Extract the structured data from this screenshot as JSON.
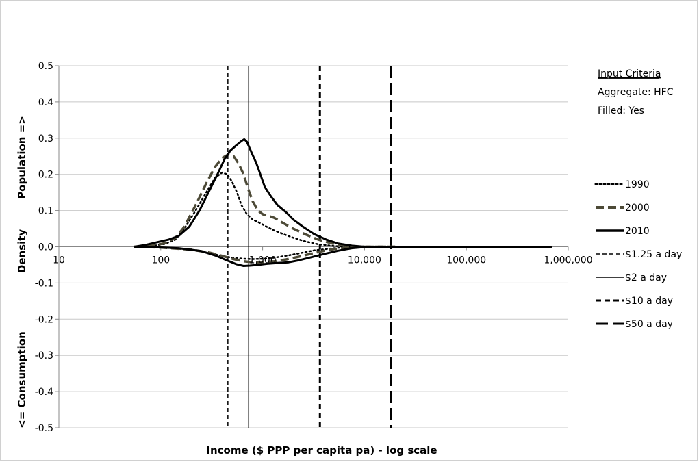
{
  "chart_data": {
    "type": "line",
    "xscale": "log",
    "xlim": [
      10,
      1000000
    ],
    "ylim": [
      -0.5,
      0.5
    ],
    "ytick_labels": [
      "0.5",
      "0.4",
      "0.3",
      "0.2",
      "0.1",
      "0.0",
      "-0.1",
      "-0.2",
      "-0.3",
      "-0.4",
      "-0.5"
    ],
    "yticks": [
      0.5,
      0.4,
      0.3,
      0.2,
      0.1,
      0.0,
      -0.1,
      -0.2,
      -0.3,
      -0.4,
      -0.5
    ],
    "xticks": [
      10,
      100,
      1000,
      10000,
      100000,
      1000000
    ],
    "xtick_labels": [
      "10",
      "100",
      "1,000",
      "10,000",
      "100,000",
      "1,000,000"
    ],
    "xlabel": "Income ($ PPP per capita pa) - log scale",
    "ylabel_top": "Population =>",
    "ylabel_mid": "Density",
    "ylabel_bottom": "<= Consumption",
    "grid": "horizontal",
    "legend_position": "right",
    "input_criteria": {
      "heading": "Input Criteria",
      "aggregate": "Aggregate: HFC",
      "filled": "Filled: Yes"
    },
    "series": [
      {
        "name": "1990",
        "style": "dotted",
        "color": "#000000",
        "population": [
          [
            55,
            0
          ],
          [
            70,
            0.002
          ],
          [
            90,
            0.004
          ],
          [
            110,
            0.008
          ],
          [
            140,
            0.02
          ],
          [
            170,
            0.05
          ],
          [
            220,
            0.1
          ],
          [
            280,
            0.15
          ],
          [
            340,
            0.19
          ],
          [
            400,
            0.205
          ],
          [
            450,
            0.2
          ],
          [
            500,
            0.18
          ],
          [
            560,
            0.15
          ],
          [
            620,
            0.115
          ],
          [
            700,
            0.09
          ],
          [
            800,
            0.075
          ],
          [
            950,
            0.065
          ],
          [
            1100,
            0.055
          ],
          [
            1300,
            0.045
          ],
          [
            1600,
            0.035
          ],
          [
            2000,
            0.025
          ],
          [
            2600,
            0.015
          ],
          [
            3500,
            0.007
          ],
          [
            5000,
            0.002
          ],
          [
            7000,
            0
          ],
          [
            20000,
            0
          ]
        ],
        "consumption": [
          [
            55,
            0
          ],
          [
            100,
            -0.002
          ],
          [
            200,
            -0.008
          ],
          [
            300,
            -0.018
          ],
          [
            400,
            -0.025
          ],
          [
            500,
            -0.03
          ],
          [
            650,
            -0.033
          ],
          [
            800,
            -0.034
          ],
          [
            1000,
            -0.033
          ],
          [
            1300,
            -0.03
          ],
          [
            1700,
            -0.025
          ],
          [
            2300,
            -0.018
          ],
          [
            3200,
            -0.01
          ],
          [
            5000,
            -0.004
          ],
          [
            8000,
            0
          ],
          [
            20000,
            0
          ]
        ]
      },
      {
        "name": "2000",
        "style": "dashed",
        "color": "#4d4a37",
        "population": [
          [
            55,
            0
          ],
          [
            70,
            0.002
          ],
          [
            90,
            0.005
          ],
          [
            110,
            0.01
          ],
          [
            140,
            0.025
          ],
          [
            170,
            0.055
          ],
          [
            220,
            0.115
          ],
          [
            280,
            0.175
          ],
          [
            340,
            0.22
          ],
          [
            400,
            0.245
          ],
          [
            460,
            0.255
          ],
          [
            520,
            0.25
          ],
          [
            580,
            0.23
          ],
          [
            650,
            0.2
          ],
          [
            720,
            0.16
          ],
          [
            800,
            0.125
          ],
          [
            900,
            0.1
          ],
          [
            1000,
            0.09
          ],
          [
            1150,
            0.085
          ],
          [
            1300,
            0.08
          ],
          [
            1600,
            0.065
          ],
          [
            2000,
            0.05
          ],
          [
            2600,
            0.035
          ],
          [
            3500,
            0.02
          ],
          [
            5000,
            0.008
          ],
          [
            7000,
            0.002
          ],
          [
            10000,
            0
          ],
          [
            20000,
            0
          ]
        ],
        "consumption": [
          [
            55,
            0
          ],
          [
            100,
            -0.002
          ],
          [
            200,
            -0.008
          ],
          [
            300,
            -0.016
          ],
          [
            400,
            -0.025
          ],
          [
            500,
            -0.033
          ],
          [
            650,
            -0.04
          ],
          [
            800,
            -0.043
          ],
          [
            1000,
            -0.043
          ],
          [
            1300,
            -0.04
          ],
          [
            1700,
            -0.035
          ],
          [
            2300,
            -0.027
          ],
          [
            3200,
            -0.017
          ],
          [
            4500,
            -0.008
          ],
          [
            7000,
            -0.002
          ],
          [
            10000,
            0
          ],
          [
            20000,
            0
          ]
        ]
      },
      {
        "name": "2010",
        "style": "solid",
        "color": "#000000",
        "population": [
          [
            55,
            0
          ],
          [
            70,
            0.005
          ],
          [
            90,
            0.012
          ],
          [
            120,
            0.02
          ],
          [
            150,
            0.03
          ],
          [
            190,
            0.055
          ],
          [
            240,
            0.1
          ],
          [
            300,
            0.155
          ],
          [
            360,
            0.2
          ],
          [
            420,
            0.24
          ],
          [
            480,
            0.265
          ],
          [
            550,
            0.28
          ],
          [
            620,
            0.292
          ],
          [
            660,
            0.297
          ],
          [
            700,
            0.29
          ],
          [
            780,
            0.26
          ],
          [
            870,
            0.23
          ],
          [
            950,
            0.2
          ],
          [
            1050,
            0.165
          ],
          [
            1200,
            0.14
          ],
          [
            1400,
            0.115
          ],
          [
            1700,
            0.095
          ],
          [
            2000,
            0.075
          ],
          [
            2500,
            0.055
          ],
          [
            3200,
            0.035
          ],
          [
            4200,
            0.02
          ],
          [
            5500,
            0.009
          ],
          [
            7500,
            0.003
          ],
          [
            10000,
            0
          ],
          [
            20000,
            0
          ],
          [
            700000,
            0
          ]
        ],
        "consumption": [
          [
            55,
            0
          ],
          [
            80,
            -0.001
          ],
          [
            150,
            -0.004
          ],
          [
            250,
            -0.012
          ],
          [
            350,
            -0.025
          ],
          [
            450,
            -0.038
          ],
          [
            550,
            -0.048
          ],
          [
            650,
            -0.053
          ],
          [
            750,
            -0.052
          ],
          [
            900,
            -0.05
          ],
          [
            1100,
            -0.047
          ],
          [
            1400,
            -0.045
          ],
          [
            1800,
            -0.043
          ],
          [
            2300,
            -0.037
          ],
          [
            3000,
            -0.029
          ],
          [
            4000,
            -0.02
          ],
          [
            5500,
            -0.011
          ],
          [
            7500,
            -0.004
          ],
          [
            10000,
            -0.001
          ],
          [
            20000,
            0
          ]
        ]
      }
    ],
    "reference_lines": [
      {
        "name": "$1.25 a day",
        "x": 456,
        "style": "short-dash",
        "width": 1.5
      },
      {
        "name": "$2 a day",
        "x": 730,
        "style": "solid",
        "width": 1.5
      },
      {
        "name": "$10 a day",
        "x": 3650,
        "style": "dash",
        "width": 3
      },
      {
        "name": "$50 a day",
        "x": 18250,
        "style": "long-dash",
        "width": 3
      }
    ]
  }
}
